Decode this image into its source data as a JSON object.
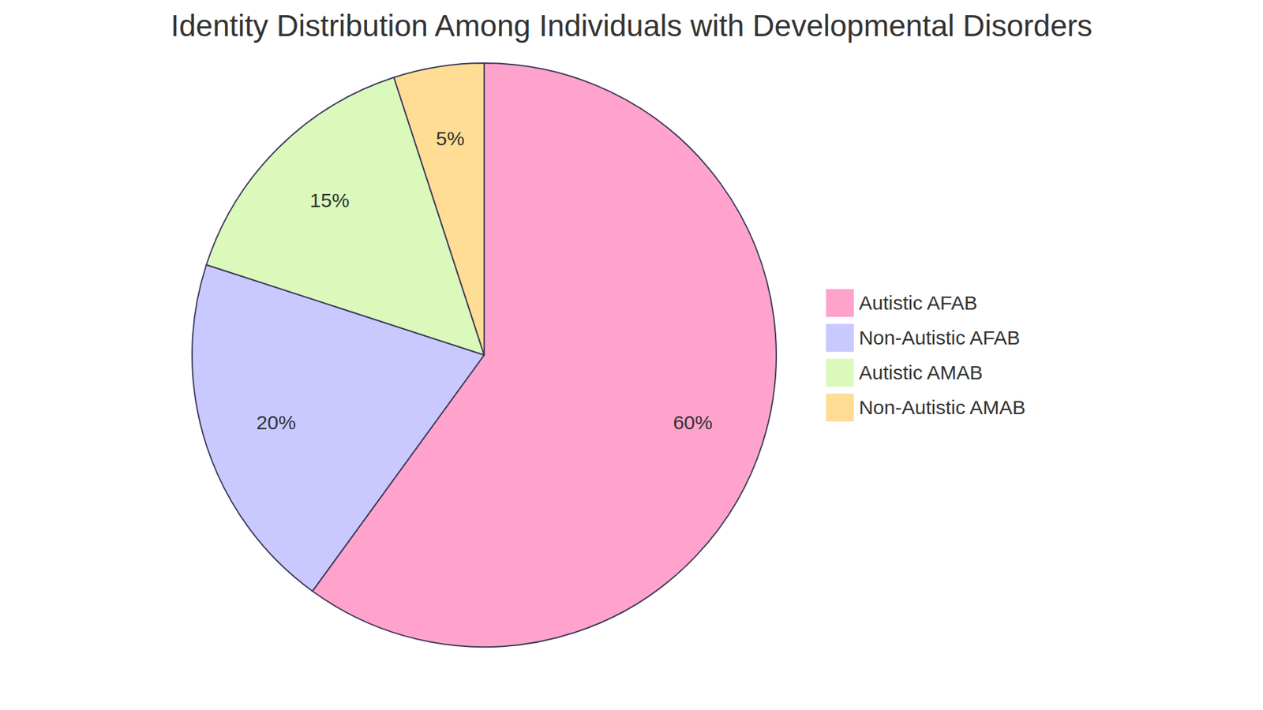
{
  "chart_data": {
    "type": "pie",
    "title": "Identity Distribution Among Individuals with Developmental Disorders",
    "categories": [
      "Autistic AFAB",
      "Non-Autistic AFAB",
      "Autistic AMAB",
      "Non-Autistic AMAB"
    ],
    "values": [
      60,
      20,
      15,
      5
    ],
    "value_labels": [
      "60%",
      "20%",
      "15%",
      "5%"
    ],
    "colors": [
      "#ffa3cd",
      "#c9c9ff",
      "#dbf9bb",
      "#ffdd94"
    ],
    "data_labels": true,
    "legend": "right"
  }
}
